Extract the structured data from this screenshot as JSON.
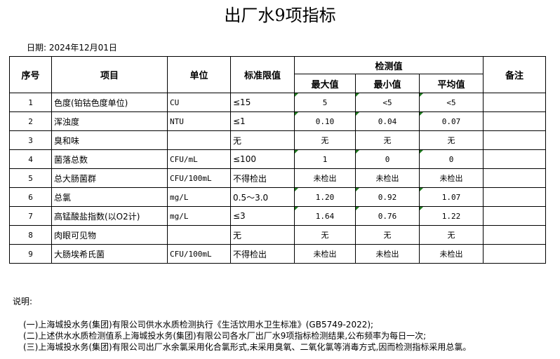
{
  "title": "出厂水9项指标",
  "date": "日期: 2024年12月01日",
  "headers": {
    "no": "序号",
    "item": "项目",
    "unit": "单位",
    "limit": "标准限值",
    "measured": "检测值",
    "max": "最大值",
    "min": "最小值",
    "avg": "平均值",
    "remark": "备注"
  },
  "rows": [
    {
      "no": "1",
      "item": "色度(铂钴色度单位)",
      "unit": "CU",
      "limit": "≤15",
      "max": "5",
      "min": "<5",
      "avg": "<5",
      "flag": true
    },
    {
      "no": "2",
      "item": "浑浊度",
      "unit": "NTU",
      "limit": "≤1",
      "max": "0.10",
      "min": "0.04",
      "avg": "0.07",
      "flag": true
    },
    {
      "no": "3",
      "item": "臭和味",
      "unit": "",
      "limit": "无",
      "max": "无",
      "min": "无",
      "avg": "无",
      "flag": false
    },
    {
      "no": "4",
      "item": "菌落总数",
      "unit": "CFU/mL",
      "limit": "≤100",
      "max": "1",
      "min": "0",
      "avg": "0",
      "flag": true
    },
    {
      "no": "5",
      "item": "总大肠菌群",
      "unit": "CFU/100mL",
      "limit": "不得检出",
      "max": "未检出",
      "min": "未检出",
      "avg": "未检出",
      "flag": false
    },
    {
      "no": "6",
      "item": "总氯",
      "unit": "mg/L",
      "limit": "0.5～3.0",
      "max": "1.20",
      "min": "0.92",
      "avg": "1.07",
      "flag": true
    },
    {
      "no": "7",
      "item": "高锰酸盐指数(以O2计)",
      "unit": "mg/L",
      "limit": "≤3",
      "max": "1.64",
      "min": "0.76",
      "avg": "1.22",
      "flag": true
    },
    {
      "no": "8",
      "item": "肉眼可见物",
      "unit": "",
      "limit": "无",
      "max": "无",
      "min": "无",
      "avg": "无",
      "flag": false
    },
    {
      "no": "9",
      "item": "大肠埃希氏菌",
      "unit": "CFU/100mL",
      "limit": "不得检出",
      "max": "未检出",
      "min": "未检出",
      "avg": "未检出",
      "flag": false
    }
  ],
  "notes": {
    "heading": "说明:",
    "lines": [
      "(一)上海城投水务(集团)有限公司供水水质检测执行《生活饮用水卫生标准》(GB5749-2022);",
      "(二)上述供水水质检测值系上海城投水务(集团)有限公司各水厂出厂水9项指标检测结果,公布频率为每日一次;",
      "(三)上海城投水务(集团)有限公司出厂水余氯采用化合氯形式,未采用臭氧、二氧化氯等消毒方式,因而检测指标采用总氯。"
    ]
  }
}
